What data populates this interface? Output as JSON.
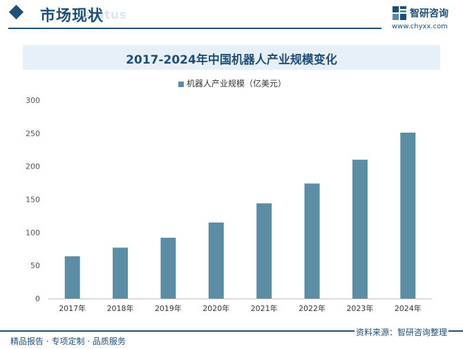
{
  "header": {
    "section_title": "市场现状",
    "section_ghost": "status",
    "logo_name": "智研咨询",
    "logo_url": "www.chyxx.com"
  },
  "chart_data": {
    "type": "bar",
    "title": "2017-2024年中国机器人产业规模变化",
    "categories": [
      "2017年",
      "2018年",
      "2019年",
      "2020年",
      "2021年",
      "2022年",
      "2023年",
      "2024年"
    ],
    "series": [
      {
        "name": "机器人产业规模（亿美元）",
        "values": [
          64,
          77,
          92,
          115,
          144,
          174,
          210,
          251
        ]
      }
    ],
    "ylim": [
      0,
      300
    ],
    "yticks": [
      0,
      50,
      100,
      150,
      200,
      250,
      300
    ],
    "grid": false,
    "legend": "top-center",
    "colors": {
      "bar": "#5b8ea5",
      "accent": "#1f4e79"
    }
  },
  "footer": {
    "left": "精品报告 · 专项定制 · 品质服务",
    "right": "资料来源：智研咨询整理"
  }
}
